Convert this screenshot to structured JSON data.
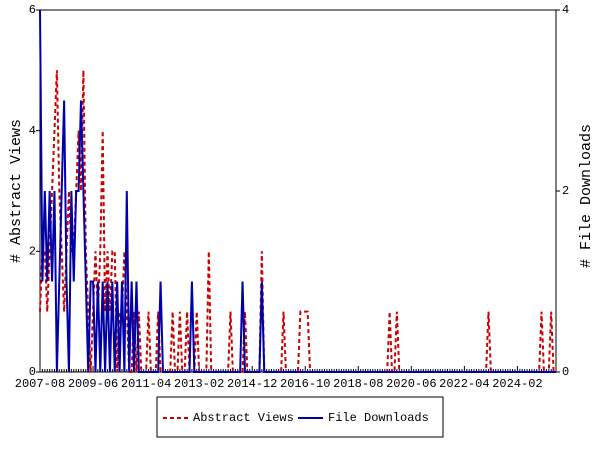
{
  "chart_data": {
    "type": "line",
    "y_label": "# Abstract Views",
    "y2_label": "# File Downloads",
    "categories": [
      "2007-08",
      null,
      null,
      null,
      null,
      null,
      null,
      null,
      null,
      null,
      null,
      null,
      null,
      null,
      null,
      null,
      null,
      null,
      null,
      null,
      null,
      null,
      "2009-06",
      null,
      null,
      null,
      null,
      null,
      null,
      null,
      null,
      null,
      null,
      null,
      null,
      null,
      null,
      null,
      null,
      null,
      null,
      null,
      null,
      null,
      "2011-04",
      null,
      null,
      null,
      null,
      null,
      null,
      null,
      null,
      null,
      null,
      null,
      null,
      null,
      null,
      null,
      null,
      null,
      null,
      null,
      null,
      null,
      "2013-02",
      null,
      null,
      null,
      null,
      null,
      null,
      null,
      null,
      null,
      null,
      null,
      null,
      null,
      null,
      null,
      null,
      null,
      null,
      null,
      null,
      null,
      "2014-12",
      null,
      null,
      null,
      null,
      null,
      null,
      null,
      null,
      null,
      null,
      null,
      null,
      null,
      null,
      null,
      null,
      null,
      null,
      null,
      null,
      null,
      "2016-10",
      null,
      null,
      null,
      null,
      null,
      null,
      null,
      null,
      null,
      null,
      null,
      null,
      null,
      null,
      null,
      null,
      null,
      null,
      null,
      null,
      null,
      "2018-08",
      null,
      null,
      null,
      null,
      null,
      null,
      null,
      null,
      null,
      null,
      null,
      null,
      null,
      null,
      null,
      null,
      null,
      null,
      null,
      null,
      null,
      "2020-06",
      null,
      null,
      null,
      null,
      null,
      null,
      null,
      null,
      null,
      null,
      null,
      null,
      null,
      null,
      null,
      null,
      null,
      null,
      null,
      null,
      null,
      "2022-04",
      null,
      null,
      null,
      null,
      null,
      null,
      null,
      null,
      null,
      null,
      null,
      null,
      null,
      null,
      null,
      null,
      null,
      null,
      null,
      null,
      null,
      "2024-02",
      null,
      null,
      null,
      null,
      null,
      null,
      null,
      null,
      null,
      null,
      null,
      null,
      null,
      null,
      null,
      null
    ],
    "series": [
      {
        "name": "Abstract Views",
        "color": "#cc0000",
        "dash": true,
        "values": [
          1,
          2,
          2,
          1,
          2,
          3,
          4,
          5,
          3,
          2,
          1,
          2,
          3,
          2,
          2,
          3,
          4,
          3,
          5,
          2,
          1,
          0,
          1,
          2,
          1,
          2,
          4,
          1,
          2,
          1,
          2,
          2,
          0,
          1,
          1,
          2,
          1,
          0,
          0,
          1,
          0,
          1,
          0,
          0,
          0,
          1,
          0,
          0,
          0,
          1,
          0,
          0,
          0,
          0,
          0,
          1,
          0,
          0,
          1,
          0,
          0,
          1,
          0,
          0,
          0,
          1,
          0,
          0,
          0,
          0,
          2,
          0,
          0,
          0,
          0,
          0,
          0,
          0,
          0,
          1,
          0,
          0,
          0,
          0,
          0,
          1,
          0,
          0,
          0,
          0,
          0,
          0,
          2,
          0,
          0,
          0,
          0,
          0,
          0,
          0,
          0,
          1,
          0,
          0,
          0,
          0,
          0,
          0,
          1,
          1,
          1,
          1,
          0,
          0,
          0,
          0,
          0,
          0,
          0,
          0,
          0,
          0,
          0,
          0,
          0,
          0,
          0,
          0,
          0,
          0,
          0,
          0,
          0,
          0,
          0,
          0,
          0,
          0,
          0,
          0,
          0,
          0,
          0,
          0,
          0,
          1,
          0,
          0,
          1,
          0,
          0,
          0,
          0,
          0,
          0,
          0,
          0,
          0,
          0,
          0,
          0,
          0,
          0,
          0,
          0,
          0,
          0,
          0,
          0,
          0,
          0,
          0,
          0,
          0,
          0,
          0,
          0,
          0,
          0,
          0,
          0,
          0,
          0,
          0,
          0,
          0,
          1,
          0,
          0,
          0,
          0,
          0,
          0,
          0,
          0,
          0,
          0,
          0,
          0,
          0,
          0,
          0,
          0,
          0,
          0,
          0,
          0,
          0,
          1,
          0,
          0,
          0,
          1,
          0,
          0
        ]
      },
      {
        "name": "File Downloads",
        "color": "#0000aa",
        "dash": false,
        "axis": "y2",
        "values": [
          4,
          1,
          2,
          1,
          2,
          1,
          2,
          0,
          1,
          2,
          3,
          1,
          0,
          2,
          1,
          2,
          2,
          3,
          2,
          1,
          0,
          1,
          1,
          0,
          1,
          0,
          1,
          0,
          1,
          0,
          1,
          0,
          1,
          0,
          1,
          0,
          2,
          0,
          1,
          0,
          1,
          0,
          0,
          0,
          0,
          0,
          0,
          0,
          0,
          0,
          1,
          0,
          0,
          0,
          0,
          0,
          0,
          0,
          0,
          0,
          0,
          0,
          0,
          1,
          0,
          0,
          0,
          0,
          0,
          0,
          0,
          0,
          0,
          0,
          0,
          0,
          0,
          0,
          0,
          0,
          0,
          0,
          0,
          0,
          1,
          0,
          0,
          0,
          0,
          0,
          0,
          0,
          1,
          0,
          0,
          0,
          0,
          0,
          0,
          0,
          0,
          0,
          0,
          0,
          0,
          0,
          0,
          0,
          0,
          0,
          0,
          0,
          0,
          0,
          0,
          0,
          0,
          0,
          0,
          0,
          0,
          0,
          0,
          0,
          0,
          0,
          0,
          0,
          0,
          0,
          0,
          0,
          0,
          0,
          0,
          0,
          0,
          0,
          0,
          0,
          0,
          0,
          0,
          0,
          0,
          0,
          0,
          0,
          0,
          0,
          0,
          0,
          0,
          0,
          0,
          0,
          0,
          0,
          0,
          0,
          0,
          0,
          0,
          0,
          0,
          0,
          0,
          0,
          0,
          0,
          0,
          0,
          0,
          0,
          0,
          0,
          0,
          0,
          0,
          0,
          0,
          0,
          0,
          0,
          0,
          0,
          0,
          0,
          0,
          0,
          0,
          0,
          0,
          0,
          0,
          0,
          0,
          0,
          0,
          0,
          0,
          0,
          0,
          0,
          0,
          0,
          0,
          0,
          0,
          0,
          0,
          0,
          0,
          0,
          0
        ]
      }
    ],
    "ylim": [
      0,
      6
    ],
    "yticks": [
      0,
      2,
      4,
      6
    ],
    "y2lim": [
      0,
      4
    ],
    "y2ticks": [
      0,
      2,
      4
    ],
    "legend": "bottom"
  }
}
